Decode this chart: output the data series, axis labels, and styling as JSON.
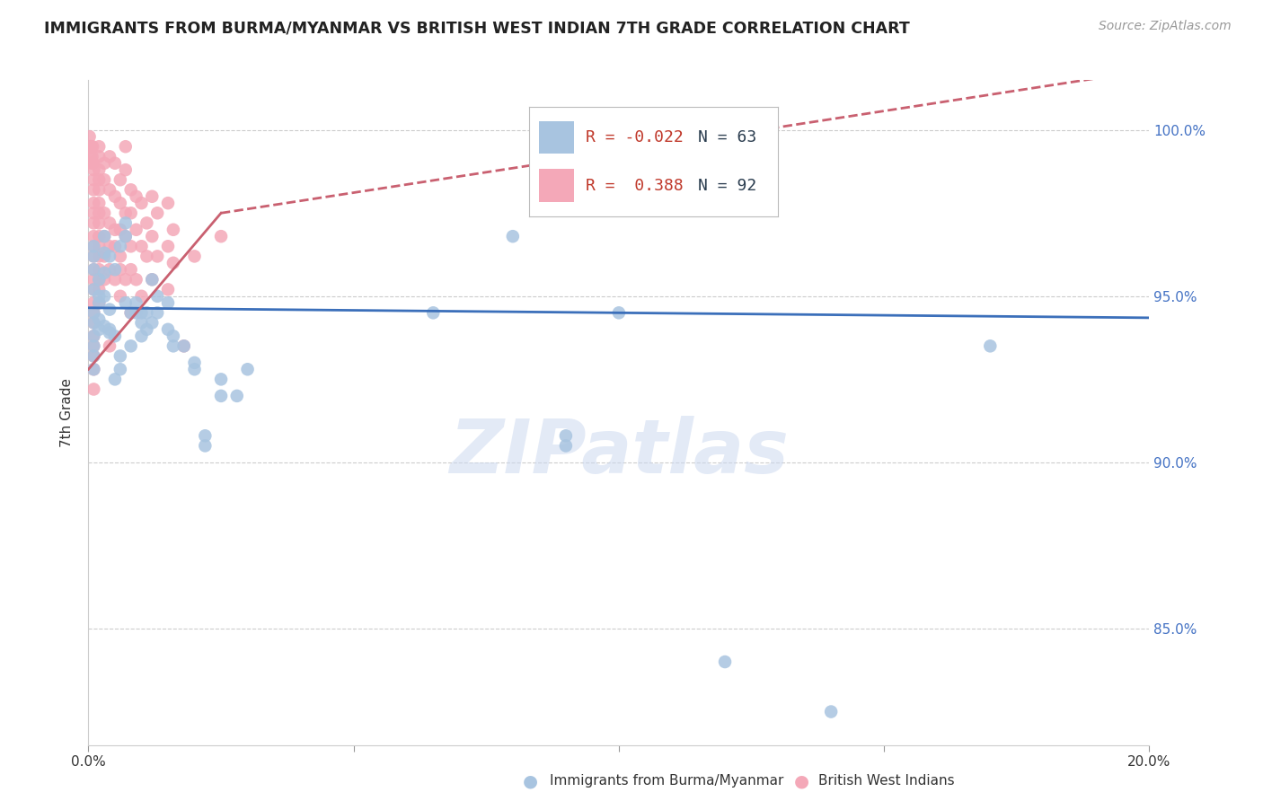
{
  "title": "IMMIGRANTS FROM BURMA/MYANMAR VS BRITISH WEST INDIAN 7TH GRADE CORRELATION CHART",
  "source": "Source: ZipAtlas.com",
  "ylabel": "7th Grade",
  "xlim": [
    0.0,
    0.2
  ],
  "ylim": [
    81.5,
    101.5
  ],
  "legend_r_blue": "-0.022",
  "legend_n_blue": "63",
  "legend_r_pink": "0.388",
  "legend_n_pink": "92",
  "blue_color": "#a8c4e0",
  "pink_color": "#f4a8b8",
  "blue_line_color": "#3b6fba",
  "pink_line_color": "#c96070",
  "watermark": "ZIPatlas",
  "blue_line": [
    0.0,
    0.2,
    94.65,
    94.35
  ],
  "pink_line_solid": [
    0.0,
    0.025,
    92.8,
    97.5
  ],
  "pink_line_dash": [
    0.025,
    0.2,
    97.5,
    101.8
  ],
  "blue_points": [
    [
      0.001,
      94.5
    ],
    [
      0.001,
      94.2
    ],
    [
      0.001,
      93.8
    ],
    [
      0.001,
      93.5
    ],
    [
      0.001,
      93.2
    ],
    [
      0.001,
      92.8
    ],
    [
      0.001,
      96.5
    ],
    [
      0.001,
      96.2
    ],
    [
      0.001,
      95.8
    ],
    [
      0.001,
      95.2
    ],
    [
      0.002,
      94.8
    ],
    [
      0.002,
      94.3
    ],
    [
      0.002,
      95.5
    ],
    [
      0.002,
      95.0
    ],
    [
      0.002,
      94.0
    ],
    [
      0.003,
      94.1
    ],
    [
      0.003,
      96.8
    ],
    [
      0.003,
      96.3
    ],
    [
      0.003,
      95.7
    ],
    [
      0.003,
      95.0
    ],
    [
      0.004,
      94.6
    ],
    [
      0.004,
      93.9
    ],
    [
      0.004,
      96.2
    ],
    [
      0.004,
      94.0
    ],
    [
      0.005,
      93.8
    ],
    [
      0.005,
      92.5
    ],
    [
      0.005,
      95.8
    ],
    [
      0.006,
      93.2
    ],
    [
      0.006,
      92.8
    ],
    [
      0.006,
      96.5
    ],
    [
      0.007,
      94.8
    ],
    [
      0.007,
      96.8
    ],
    [
      0.007,
      97.2
    ],
    [
      0.008,
      94.5
    ],
    [
      0.008,
      93.5
    ],
    [
      0.009,
      94.8
    ],
    [
      0.009,
      94.5
    ],
    [
      0.01,
      94.2
    ],
    [
      0.01,
      94.5
    ],
    [
      0.01,
      93.8
    ],
    [
      0.011,
      94.5
    ],
    [
      0.011,
      94.0
    ],
    [
      0.012,
      94.2
    ],
    [
      0.012,
      95.5
    ],
    [
      0.013,
      95.0
    ],
    [
      0.013,
      94.5
    ],
    [
      0.015,
      94.8
    ],
    [
      0.015,
      94.0
    ],
    [
      0.016,
      93.8
    ],
    [
      0.016,
      93.5
    ],
    [
      0.018,
      93.5
    ],
    [
      0.02,
      93.0
    ],
    [
      0.02,
      92.8
    ],
    [
      0.022,
      90.8
    ],
    [
      0.022,
      90.5
    ],
    [
      0.025,
      92.5
    ],
    [
      0.025,
      92.0
    ],
    [
      0.028,
      92.0
    ],
    [
      0.03,
      92.8
    ],
    [
      0.065,
      94.5
    ],
    [
      0.08,
      96.8
    ],
    [
      0.09,
      90.8
    ],
    [
      0.09,
      90.5
    ],
    [
      0.1,
      94.5
    ],
    [
      0.12,
      84.0
    ],
    [
      0.14,
      82.5
    ],
    [
      0.17,
      93.5
    ]
  ],
  "pink_points": [
    [
      0.0002,
      99.8
    ],
    [
      0.0003,
      99.5
    ],
    [
      0.0004,
      99.2
    ],
    [
      0.0005,
      99.5
    ],
    [
      0.0006,
      99.0
    ],
    [
      0.0007,
      99.2
    ],
    [
      0.0008,
      99.5
    ],
    [
      0.0009,
      99.0
    ],
    [
      0.001,
      98.8
    ],
    [
      0.001,
      98.5
    ],
    [
      0.001,
      98.2
    ],
    [
      0.001,
      97.8
    ],
    [
      0.001,
      97.5
    ],
    [
      0.001,
      97.2
    ],
    [
      0.001,
      96.8
    ],
    [
      0.001,
      96.5
    ],
    [
      0.001,
      96.2
    ],
    [
      0.001,
      95.8
    ],
    [
      0.001,
      95.5
    ],
    [
      0.001,
      95.2
    ],
    [
      0.001,
      94.8
    ],
    [
      0.001,
      94.5
    ],
    [
      0.001,
      94.2
    ],
    [
      0.001,
      93.8
    ],
    [
      0.001,
      93.5
    ],
    [
      0.001,
      93.2
    ],
    [
      0.001,
      92.8
    ],
    [
      0.001,
      92.2
    ],
    [
      0.002,
      99.5
    ],
    [
      0.002,
      99.2
    ],
    [
      0.002,
      98.8
    ],
    [
      0.002,
      98.5
    ],
    [
      0.002,
      98.2
    ],
    [
      0.002,
      97.8
    ],
    [
      0.002,
      97.5
    ],
    [
      0.002,
      97.2
    ],
    [
      0.002,
      96.8
    ],
    [
      0.002,
      96.5
    ],
    [
      0.002,
      96.2
    ],
    [
      0.002,
      95.8
    ],
    [
      0.002,
      95.5
    ],
    [
      0.002,
      95.2
    ],
    [
      0.002,
      94.8
    ],
    [
      0.003,
      99.0
    ],
    [
      0.003,
      98.5
    ],
    [
      0.003,
      97.5
    ],
    [
      0.003,
      96.8
    ],
    [
      0.003,
      96.2
    ],
    [
      0.003,
      95.5
    ],
    [
      0.004,
      99.2
    ],
    [
      0.004,
      98.2
    ],
    [
      0.004,
      97.2
    ],
    [
      0.004,
      96.5
    ],
    [
      0.004,
      95.8
    ],
    [
      0.004,
      93.5
    ],
    [
      0.005,
      99.0
    ],
    [
      0.005,
      98.0
    ],
    [
      0.005,
      97.0
    ],
    [
      0.005,
      96.5
    ],
    [
      0.005,
      95.5
    ],
    [
      0.006,
      98.5
    ],
    [
      0.006,
      97.8
    ],
    [
      0.006,
      97.0
    ],
    [
      0.006,
      96.2
    ],
    [
      0.006,
      95.8
    ],
    [
      0.006,
      95.0
    ],
    [
      0.007,
      99.5
    ],
    [
      0.007,
      98.8
    ],
    [
      0.007,
      97.5
    ],
    [
      0.007,
      96.8
    ],
    [
      0.007,
      95.5
    ],
    [
      0.008,
      98.2
    ],
    [
      0.008,
      97.5
    ],
    [
      0.008,
      96.5
    ],
    [
      0.008,
      95.8
    ],
    [
      0.008,
      94.5
    ],
    [
      0.009,
      98.0
    ],
    [
      0.009,
      97.0
    ],
    [
      0.009,
      95.5
    ],
    [
      0.01,
      97.8
    ],
    [
      0.01,
      96.5
    ],
    [
      0.01,
      95.0
    ],
    [
      0.011,
      97.2
    ],
    [
      0.011,
      96.2
    ],
    [
      0.012,
      98.0
    ],
    [
      0.012,
      96.8
    ],
    [
      0.012,
      95.5
    ],
    [
      0.013,
      97.5
    ],
    [
      0.013,
      96.2
    ],
    [
      0.015,
      97.8
    ],
    [
      0.015,
      96.5
    ],
    [
      0.015,
      95.2
    ],
    [
      0.016,
      97.0
    ],
    [
      0.016,
      96.0
    ],
    [
      0.018,
      93.5
    ],
    [
      0.02,
      96.2
    ],
    [
      0.025,
      96.8
    ]
  ]
}
